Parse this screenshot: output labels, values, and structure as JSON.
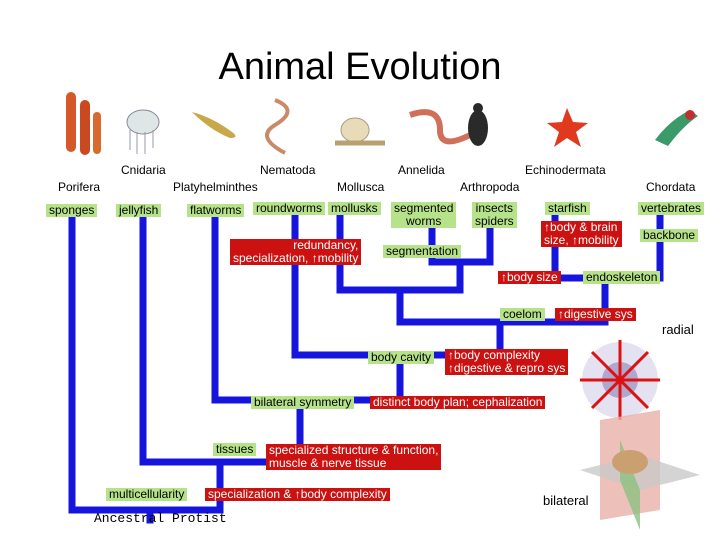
{
  "title": "Animal Evolution",
  "phyla": [
    "Cnidaria",
    "Nematoda",
    "Annelida",
    "Echinodermata",
    "Porifera",
    "Platyhelminthes",
    "Mollusca",
    "Arthropoda",
    "Chordata"
  ],
  "groups": [
    "sponges",
    "jellyfish",
    "flatworms",
    "roundworms",
    "mollusks",
    "segmented\nworms",
    "insects\nspiders",
    "starfish",
    "vertebrates"
  ],
  "traits": [
    "redundancy,\nspecialization, ↑mobility",
    "segmentation",
    "↑body & brain\nsize, ↑mobility",
    "backbone",
    "↑body size",
    "endoskeleton",
    "coelom",
    "↑digestive sys",
    "body cavity",
    "↑body complexity\n↑digestive & repro sys",
    "bilateral symmetry",
    "distinct body plan; cephalization",
    "tissues",
    "specialized structure & function,\nmuscle & nerve tissue",
    "multicellularity",
    "specialization & ↑body complexity"
  ],
  "symmetry": {
    "radial": "radial",
    "bilateral": "bilateral"
  },
  "root": "Ancestral Protist"
}
